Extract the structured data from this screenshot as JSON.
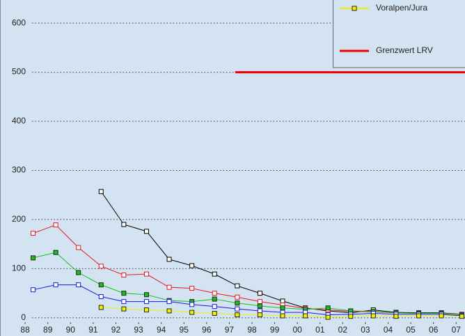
{
  "chart_data": {
    "type": "line",
    "xlim": [
      1987.26,
      2007.39
    ],
    "xticks": [
      {
        "value": 1988,
        "label": "88"
      },
      {
        "value": 1989,
        "label": "89"
      },
      {
        "value": 1990,
        "label": "90"
      },
      {
        "value": 1991,
        "label": "91"
      },
      {
        "value": 1992,
        "label": "92"
      },
      {
        "value": 1993,
        "label": "93"
      },
      {
        "value": 1994,
        "label": "94"
      },
      {
        "value": 1995,
        "label": "95"
      },
      {
        "value": 1996,
        "label": "96"
      },
      {
        "value": 1997,
        "label": "97"
      },
      {
        "value": 1998,
        "label": "98"
      },
      {
        "value": 1999,
        "label": "99"
      },
      {
        "value": 2000,
        "label": "00"
      },
      {
        "value": 2001,
        "label": "01"
      },
      {
        "value": 2002,
        "label": "02"
      },
      {
        "value": 2003,
        "label": "03"
      },
      {
        "value": 2004,
        "label": "04"
      },
      {
        "value": 2005,
        "label": "05"
      },
      {
        "value": 2006,
        "label": "06"
      },
      {
        "value": 2007,
        "label": "07"
      }
    ],
    "ylim": [
      -13,
      647
    ],
    "yticks": [
      0,
      100,
      200,
      300,
      400,
      500,
      600
    ],
    "grid": true,
    "x": [
      1988.35,
      1989.35,
      1990.35,
      1991.35,
      1992.35,
      1993.35,
      1994.35,
      1995.35,
      1996.35,
      1997.35,
      1998.35,
      1999.35,
      2000.35,
      2001.35,
      2002.35,
      2003.35,
      2004.35,
      2005.35,
      2006.35,
      2007.25
    ],
    "series": [
      {
        "color": "#000000",
        "marker_color": "#ffffff",
        "values": [
          null,
          null,
          null,
          257,
          190,
          176,
          119,
          106,
          89,
          65,
          50,
          34,
          20,
          14,
          10,
          16,
          11,
          10,
          10,
          7
        ]
      },
      {
        "color": "#e8141c",
        "marker_color": "#ffffff",
        "values": [
          172,
          189,
          143,
          105,
          87,
          89,
          62,
          60,
          50,
          42,
          33,
          26,
          19,
          16,
          13,
          12,
          10,
          9,
          9,
          7
        ]
      },
      {
        "color": "#18c018",
        "marker_color": "#18c018",
        "values": [
          122,
          133,
          92,
          67,
          50,
          47,
          35,
          33,
          38,
          30,
          24,
          20,
          17,
          20,
          14,
          13,
          10,
          9,
          9,
          6
        ]
      },
      {
        "color": "#1818e8",
        "marker_color": "#ffffff",
        "values": [
          57,
          67,
          67,
          43,
          33,
          33,
          33,
          27,
          23,
          18,
          14,
          11,
          11,
          6,
          7,
          9,
          7,
          7,
          7,
          4
        ]
      },
      {
        "name": "Voralpen/Jura",
        "color": "#f0f000",
        "marker_color": "#f0f000",
        "values": [
          null,
          null,
          null,
          21,
          18,
          16,
          14,
          11,
          9,
          6,
          6,
          4,
          4,
          1,
          3,
          4,
          3,
          4,
          4,
          3
        ]
      },
      {
        "name": "Grenzwert LRV",
        "color": "#ee0000",
        "width": 3,
        "x": [
          1997.26,
          2007.39
        ],
        "values": [
          500,
          500
        ]
      }
    ]
  }
}
